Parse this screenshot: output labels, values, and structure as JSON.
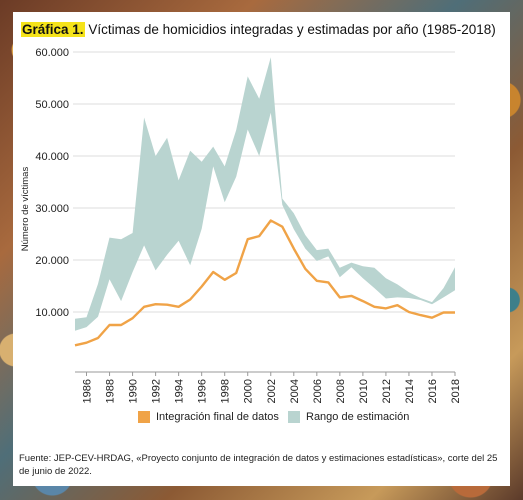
{
  "title": {
    "prefix": "Gráfica 1",
    "text": "Víctimas de homicidios integradas y estimadas por año (1985-2018)"
  },
  "source": "Fuente: JEP-CEV-HRDAG, «Proyecto conjunto de integración de datos y estimaciones estadísticas», corte del 25 de junio de 2022.",
  "colors": {
    "line": "#f0a347",
    "band": "#b9d4d0",
    "grid": "#dcdcdc",
    "highlight": "#f5e31a"
  },
  "chart_data": {
    "type": "area",
    "title": "Víctimas de homicidios integradas y estimadas por año (1985-2018)",
    "ylabel": "Número de víctimas",
    "xlabel": "",
    "xlim": [
      1985,
      2018
    ],
    "ylim": [
      0,
      60000
    ],
    "y_ticks": [
      10000,
      20000,
      30000,
      40000,
      50000,
      60000
    ],
    "y_tick_labels": [
      "10.000",
      "20.000",
      "30.000",
      "40.000",
      "50.000",
      "60.000"
    ],
    "x_ticks": [
      1986,
      1988,
      1990,
      1992,
      1994,
      1996,
      1998,
      2000,
      2002,
      2004,
      2006,
      2008,
      2010,
      2012,
      2014,
      2016,
      2018
    ],
    "grid": "horizontal",
    "legend": "bottom",
    "x": [
      1985,
      1986,
      1987,
      1988,
      1989,
      1990,
      1991,
      1992,
      1993,
      1994,
      1995,
      1996,
      1997,
      1998,
      1999,
      2000,
      2001,
      2002,
      2003,
      2004,
      2005,
      2006,
      2007,
      2008,
      2009,
      2010,
      2011,
      2012,
      2013,
      2014,
      2015,
      2016,
      2017,
      2018
    ],
    "series": [
      {
        "name": "Integración final de datos",
        "values": [
          3600,
          4100,
          5000,
          7500,
          7500,
          8800,
          11000,
          11500,
          11400,
          11000,
          12400,
          14900,
          17700,
          16200,
          17500,
          24000,
          24600,
          27600,
          26400,
          22200,
          18300,
          16000,
          15700,
          12800,
          13100,
          12100,
          11000,
          10700,
          11300,
          10000,
          9400,
          8900,
          9900,
          9900
        ]
      },
      {
        "name": "Rango de estimación",
        "lower": [
          6400,
          7100,
          9100,
          16300,
          12100,
          17700,
          22800,
          18000,
          21000,
          23700,
          19000,
          26000,
          38000,
          31100,
          36000,
          45100,
          40000,
          48300,
          30600,
          25900,
          22200,
          19800,
          20700,
          16700,
          18600,
          16500,
          14600,
          12600,
          12800,
          12700,
          12300,
          11500,
          12800,
          14200
        ],
        "upper": [
          8700,
          9000,
          15400,
          24300,
          24000,
          25200,
          47400,
          40000,
          43500,
          35300,
          41000,
          38900,
          41800,
          38000,
          45000,
          55300,
          51000,
          59000,
          31800,
          29000,
          24800,
          21900,
          22200,
          18500,
          19500,
          18800,
          18500,
          16500,
          15300,
          13800,
          12700,
          11900,
          14600,
          18600
        ]
      }
    ]
  }
}
